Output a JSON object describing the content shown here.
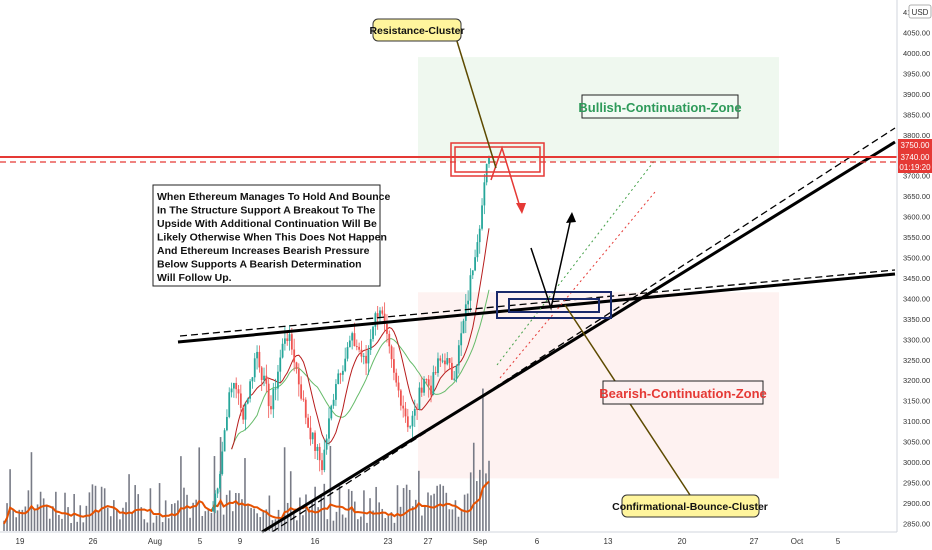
{
  "chart_data": {
    "type": "candlestick",
    "instrument": "ETH",
    "currency": "USD",
    "x_ticks": [
      "19",
      "26",
      "Aug",
      "5",
      "9",
      "16",
      "23",
      "27",
      "Sep",
      "6",
      "13",
      "20",
      "27",
      "Oct",
      "5"
    ],
    "y_ticks": [
      "4100.00",
      "4050.00",
      "4000.00",
      "3950.00",
      "3900.00",
      "3850.00",
      "3800.00",
      "3750.00",
      "3700.00",
      "3650.00",
      "3600.00",
      "3550.00",
      "3500.00",
      "3450.00",
      "3400.00",
      "3350.00",
      "3300.00",
      "3250.00",
      "3200.00",
      "3150.00",
      "3100.00",
      "3050.00",
      "3000.00",
      "2950.00",
      "2900.00",
      "2850.00"
    ],
    "ylim": [
      2840,
      4110
    ],
    "price_labels": {
      "resistance": "3750.00",
      "current": "3740.00",
      "countdown": "01:19:20"
    },
    "zones": {
      "bullish": {
        "label": "Bullish-Continuation-Zone",
        "color": "#2e9a5a",
        "price_top": 3990,
        "price_bottom": 3735
      },
      "bearish": {
        "label": "Bearish-Continuation-Zone",
        "color": "#e53935",
        "price_top": 3415,
        "price_bottom": 2960
      }
    },
    "callouts": {
      "resistance_cluster": "Resistance-Cluster",
      "confirmational_cluster": "Confirmational-Bounce-Cluster"
    },
    "annotation_text": [
      "When Ethereum Manages To Hold And Bounce",
      "In The Structure Support A Breakout To The",
      "Upside With Additional Continuation Will Be",
      "Likely Otherwise When This Does Not Happen",
      "And Ethereum Increases Bearish Pressure",
      "Below Supports A Bearish Determination",
      "Will Follow Up."
    ],
    "price_path": [
      2890,
      2985,
      3140,
      3205,
      3110,
      3180,
      3275,
      3195,
      3130,
      3230,
      3320,
      3270,
      3180,
      3095,
      3040,
      2990,
      3100,
      3210,
      3245,
      3300,
      3280,
      3235,
      3340,
      3380,
      3290,
      3200,
      3150,
      3085,
      3130,
      3210,
      3180,
      3240,
      3255,
      3205,
      3290,
      3390,
      3510,
      3620,
      3760
    ],
    "colors": {
      "resistance_line": "#e53935",
      "up_candle": "#26a69a",
      "down_candle": "#ef5350",
      "trendline": "#000000",
      "cluster_box": "#1a2a6c",
      "volume": "#787b86",
      "volume_ma": "#e65100",
      "ma_fast": "#b71c1c",
      "ma_slow": "#66bb6a",
      "callout_fill": "#fff59d"
    }
  }
}
